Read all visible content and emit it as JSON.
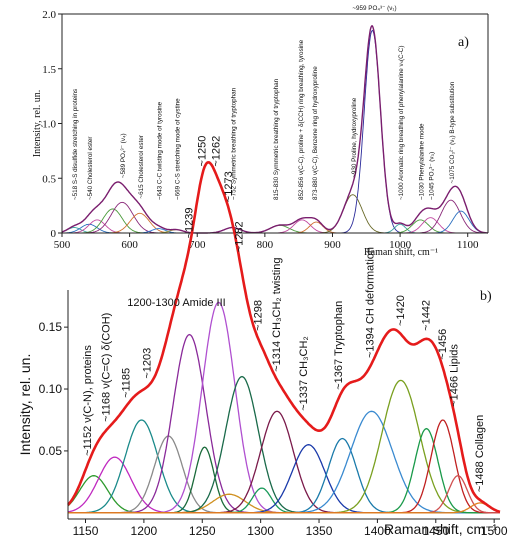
{
  "chart_data": [
    {
      "panel": "a)",
      "type": "line",
      "xlabel": "Raman shift, cm⁻¹",
      "ylabel": "Intensity, rel. un.",
      "xlim": [
        500,
        1130
      ],
      "ylim": [
        0,
        2.0
      ],
      "xticks": [
        "500",
        "600",
        "700",
        "800",
        "900",
        "1000",
        "1100"
      ],
      "yticks": [
        "0",
        "0.5",
        "1.0",
        "1.5",
        "2.0"
      ],
      "envelope_color": "#7a1e6e",
      "bands": [
        {
          "center": 518,
          "amp": 0.05,
          "width": 10,
          "color": "#3aa0a0"
        },
        {
          "center": 540,
          "amp": 0.08,
          "width": 12,
          "color": "#2b6fbf"
        },
        {
          "center": 552,
          "amp": 0.12,
          "width": 12,
          "color": "#c24aa0"
        },
        {
          "center": 575,
          "amp": 0.22,
          "width": 14,
          "color": "#4a9a3a"
        },
        {
          "center": 589,
          "amp": 0.28,
          "width": 16,
          "color": "#8a2a7a"
        },
        {
          "center": 615,
          "amp": 0.18,
          "width": 14,
          "color": "#d07030"
        },
        {
          "center": 643,
          "amp": 0.04,
          "width": 10,
          "color": "#2a7ad0"
        },
        {
          "center": 669,
          "amp": 0.03,
          "width": 10,
          "color": "#a0a030"
        },
        {
          "center": 752,
          "amp": 0.05,
          "width": 12,
          "color": "#2b6fbf"
        },
        {
          "center": 822,
          "amp": 0.07,
          "width": 14,
          "color": "#4a9a3a"
        },
        {
          "center": 855,
          "amp": 0.12,
          "width": 12,
          "color": "#c24aa0"
        },
        {
          "center": 876,
          "amp": 0.1,
          "width": 10,
          "color": "#d07030"
        },
        {
          "center": 930,
          "amp": 0.35,
          "width": 14,
          "color": "#6a6a2a"
        },
        {
          "center": 959,
          "amp": 1.85,
          "width": 12,
          "color": "#2a2a9a"
        },
        {
          "center": 1000,
          "amp": 0.08,
          "width": 8,
          "color": "#3aa0a0"
        },
        {
          "center": 1030,
          "amp": 0.12,
          "width": 12,
          "color": "#4a9a3a"
        },
        {
          "center": 1045,
          "amp": 0.14,
          "width": 12,
          "color": "#c24aa0"
        },
        {
          "center": 1075,
          "amp": 0.3,
          "width": 14,
          "color": "#8a2a7a"
        },
        {
          "center": 1090,
          "amp": 0.2,
          "width": 12,
          "color": "#2b6fbf"
        }
      ],
      "annotations": [
        {
          "x": 518,
          "text": "~518 S-S disulfide stretching in proteins"
        },
        {
          "x": 540,
          "text": "~540 Cholesterol ester"
        },
        {
          "x": 589,
          "text": "~589 PO₄³⁻ (ν₄)"
        },
        {
          "x": 615,
          "text": "~615 Cholesterol ester"
        },
        {
          "x": 643,
          "text": "~643 C-C twisting mode of tyrosine"
        },
        {
          "x": 669,
          "text": "~669 C-S stretching mode of cystine"
        },
        {
          "x": 752,
          "text": "~752 Symmetric breathing of tryptophan"
        },
        {
          "x": 815,
          "text": "815-830 Symmetric breathing of tryptophan"
        },
        {
          "x": 852,
          "text": "852-856 ν(C-C), proline + δ(CCH) ring breathing, tyrosine"
        },
        {
          "x": 873,
          "text": "873-880 ν(C-C), Benzene ring of hydroxyproline"
        },
        {
          "x": 930,
          "text": "~930 Proline, hydroxyproline"
        },
        {
          "x": 1000,
          "text": "~1000 Aromatic ring breathing of phenylalanine νₛ(C-C)"
        },
        {
          "x": 1030,
          "text": "~1030 Phenylalanine mode"
        },
        {
          "x": 1045,
          "text": "~1045 PO₄³⁻ (ν₃)"
        },
        {
          "x": 1075,
          "text": "~1075 CO₃²⁻ (ν₁) B-type substitution"
        }
      ],
      "top_label": "~959 PO₄³⁻ (ν₁)"
    },
    {
      "panel": "b)",
      "type": "line",
      "xlabel": "Raman shift, cm⁻¹",
      "ylabel": "Intensity, rel. un.",
      "xlim": [
        1135,
        1505
      ],
      "ylim": [
        -0.005,
        0.18
      ],
      "xticks": [
        "1150",
        "1200",
        "1250",
        "1300",
        "1350",
        "1400",
        "1450",
        "1500"
      ],
      "yticks": [
        "0.05",
        "0.10",
        "0.15"
      ],
      "envelope_color": "#e51b1b",
      "group_label": "1200-1300 Amide III",
      "bands": [
        {
          "center": 1157,
          "amp": 0.03,
          "width": 12,
          "color": "#2e9a2e"
        },
        {
          "center": 1175,
          "amp": 0.045,
          "width": 14,
          "color": "#c02ac0"
        },
        {
          "center": 1198,
          "amp": 0.075,
          "width": 14,
          "color": "#1a8a8a"
        },
        {
          "center": 1221,
          "amp": 0.062,
          "width": 12,
          "color": "#8a8a8a"
        },
        {
          "center": 1239,
          "amp": 0.144,
          "width": 14,
          "color": "#8a2a9a"
        },
        {
          "center": 1252,
          "amp": 0.053,
          "width": 8,
          "color": "#1a6a3a"
        },
        {
          "center": 1264,
          "amp": 0.17,
          "width": 14,
          "color": "#b050d0"
        },
        {
          "center": 1273,
          "amp": 0.015,
          "width": 14,
          "color": "#d09020"
        },
        {
          "center": 1284,
          "amp": 0.11,
          "width": 14,
          "color": "#1a6a4a"
        },
        {
          "center": 1301,
          "amp": 0.02,
          "width": 8,
          "color": "#1a9a5a"
        },
        {
          "center": 1314,
          "amp": 0.082,
          "width": 14,
          "color": "#7a1a4a"
        },
        {
          "center": 1341,
          "amp": 0.055,
          "width": 14,
          "color": "#1a3aaa"
        },
        {
          "center": 1370,
          "amp": 0.06,
          "width": 12,
          "color": "#1a7aaa"
        },
        {
          "center": 1395,
          "amp": 0.082,
          "width": 18,
          "color": "#3a8ad0"
        },
        {
          "center": 1420,
          "amp": 0.107,
          "width": 16,
          "color": "#7aa020"
        },
        {
          "center": 1442,
          "amp": 0.068,
          "width": 10,
          "color": "#1a9a4a"
        },
        {
          "center": 1456,
          "amp": 0.075,
          "width": 10,
          "color": "#c02020"
        },
        {
          "center": 1469,
          "amp": 0.03,
          "width": 8,
          "color": "#d05050"
        },
        {
          "center": 1488,
          "amp": 0.008,
          "width": 8,
          "color": "#e08020"
        }
      ],
      "annotations": [
        {
          "x": 1152,
          "text": "~1152 ν(C-N), proteins"
        },
        {
          "x": 1168,
          "text": "~1168 ν(C=C) δ(COH)"
        },
        {
          "x": 1185,
          "text": "~1185"
        },
        {
          "x": 1203,
          "text": "~1203"
        },
        {
          "x": 1239,
          "text": "~1239"
        },
        {
          "x": 1250,
          "text": "~1250"
        },
        {
          "x": 1262,
          "text": "~1262"
        },
        {
          "x": 1273,
          "text": "~1273"
        },
        {
          "x": 1282,
          "text": "~1282"
        },
        {
          "x": 1298,
          "text": "~1298"
        },
        {
          "x": 1314,
          "text": "~1314 CH₃CH₂ twisting"
        },
        {
          "x": 1337,
          "text": "~1337 CH₃CH₂"
        },
        {
          "x": 1367,
          "text": "~1367 Tryptophan"
        },
        {
          "x": 1394,
          "text": "~1394 CH deformation"
        },
        {
          "x": 1420,
          "text": "~1420"
        },
        {
          "x": 1442,
          "text": "~1442"
        },
        {
          "x": 1456,
          "text": "~1456"
        },
        {
          "x": 1466,
          "text": "~1466 Lipids"
        },
        {
          "x": 1488,
          "text": "~1488 Collagen"
        }
      ]
    }
  ]
}
